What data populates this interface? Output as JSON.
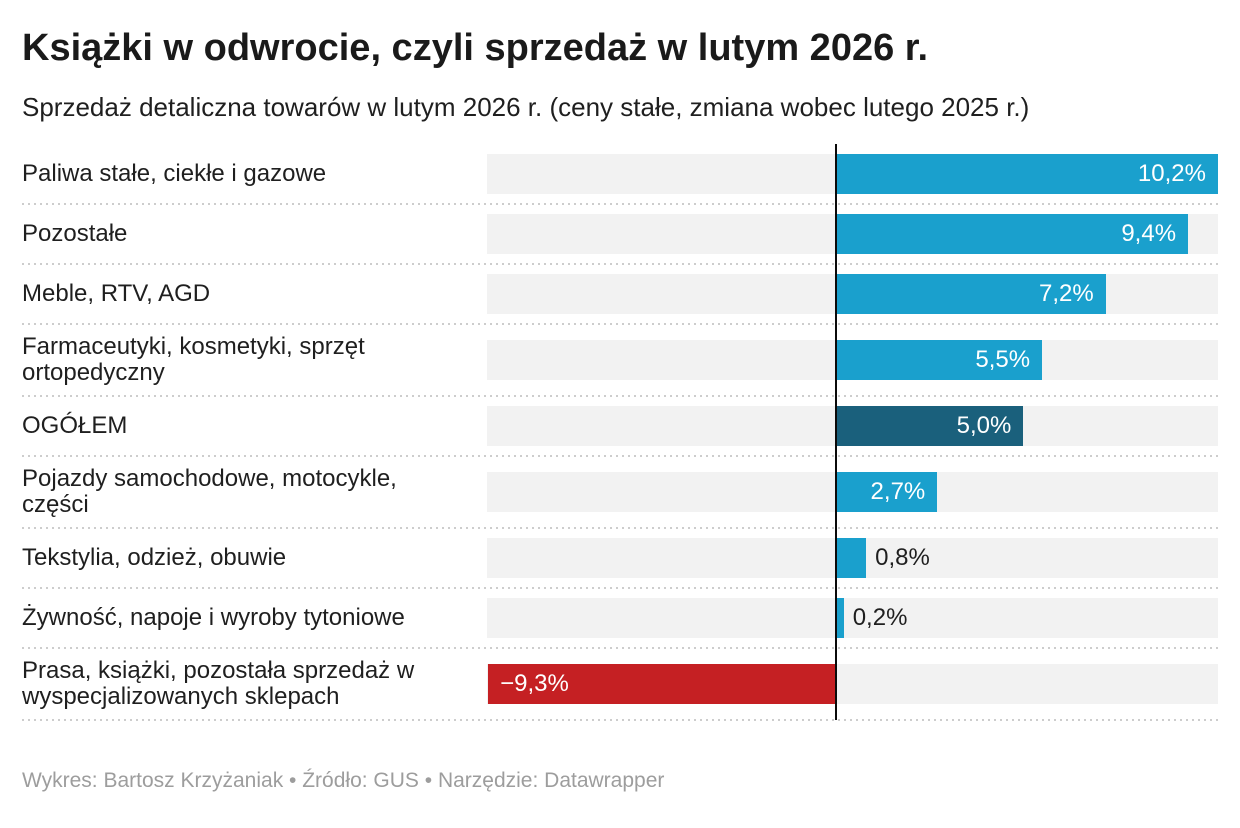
{
  "header": {
    "title": "Książki w odwrocie, czyli sprzedaż w lutym 2026 r.",
    "subtitle": "Sprzedaż detaliczna towarów w lutym 2026 r. (ceny stałe, zmiana wobec lutego 2025 r.)"
  },
  "footer": {
    "credit": "Wykres: Bartosz Krzyżaniak • Źródło: GUS • Narzędzie: Datawrapper"
  },
  "colors": {
    "positive_bar": "#1aa0cd",
    "total_bar": "#1a607c",
    "negative_bar": "#c52023",
    "track": "#f2f2f2",
    "axis": "#0b0b0b",
    "value_inside_text": "#ffffff",
    "value_outside_text": "#1f1f1f",
    "separator_dots": "#cdcdcd"
  },
  "chart_data": {
    "type": "bar",
    "orientation": "horizontal",
    "title": "Książki w odwrocie, czyli sprzedaż w lutym 2026 r.",
    "subtitle": "Sprzedaż detaliczna towarów w lutym 2026 r. (ceny stałe, zmiana wobec lutego 2025 r.)",
    "unit": "%",
    "axis_min": -9.33,
    "axis_max": 10.2,
    "grid": false,
    "legend": false,
    "categories": [
      "Paliwa stałe, ciekłe i gazowe",
      "Pozostałe",
      "Meble, RTV, AGD",
      "Farmaceutyki, kosmetyki, sprzęt ortopedyczny",
      "OGÓŁEM",
      "Pojazdy samochodowe, motocykle, części",
      "Tekstylia, odzież, obuwie",
      "Żywność, napoje i wyroby tytoniowe",
      "Prasa, książki, pozostała sprzedaż w wyspecjalizowanych sklepach"
    ],
    "values": [
      10.2,
      9.4,
      7.2,
      5.5,
      5.0,
      2.7,
      0.8,
      0.2,
      -9.3
    ],
    "value_labels": [
      "10,2%",
      "9,4%",
      "7,2%",
      "5,5%",
      "5,0%",
      "2,7%",
      "0,8%",
      "0,2%",
      "−9,3%"
    ],
    "bar_roles": [
      "positive",
      "positive",
      "positive",
      "positive",
      "total",
      "positive",
      "positive",
      "positive",
      "negative"
    ]
  }
}
